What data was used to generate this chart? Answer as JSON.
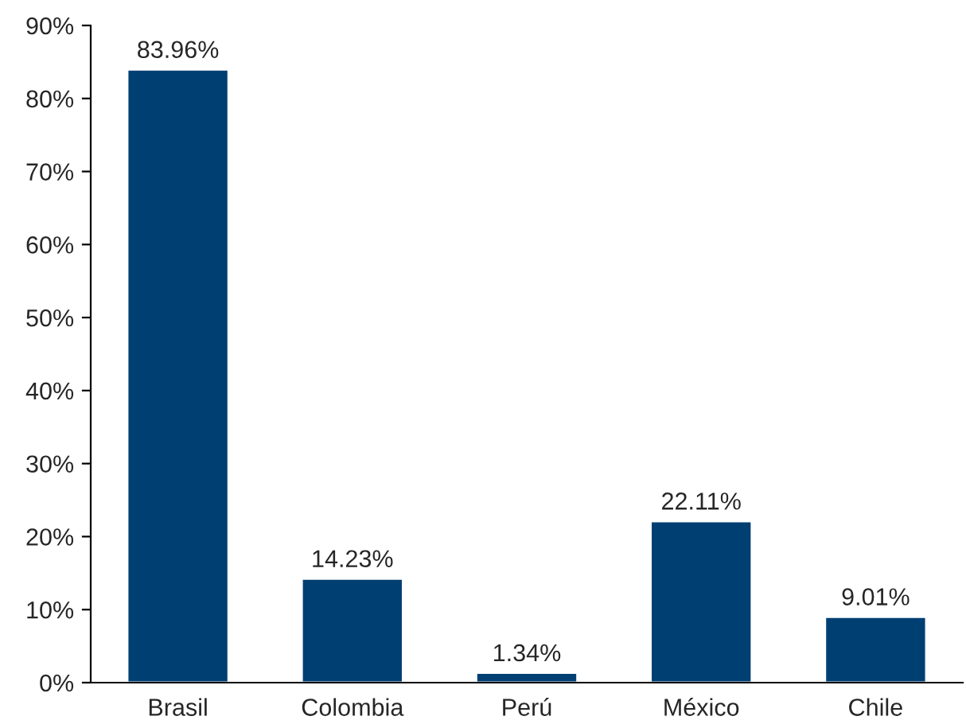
{
  "chart_data": {
    "type": "bar",
    "categories": [
      "Brasil",
      "Colombia",
      "Perú",
      "México",
      "Chile"
    ],
    "values": [
      83.96,
      14.23,
      1.34,
      22.11,
      9.01
    ],
    "value_labels": [
      "83.96%",
      "14.23%",
      "1.34%",
      "22.11%",
      "9.01%"
    ],
    "color": "#003f72",
    "ylim": [
      0,
      90
    ],
    "yticks": [
      {
        "value": 0,
        "label": "0%"
      },
      {
        "value": 10,
        "label": "10%"
      },
      {
        "value": 20,
        "label": "20%"
      },
      {
        "value": 30,
        "label": "30%"
      },
      {
        "value": 40,
        "label": "40%"
      },
      {
        "value": 50,
        "label": "50%"
      },
      {
        "value": 60,
        "label": "60%"
      },
      {
        "value": 70,
        "label": "70%"
      },
      {
        "value": 80,
        "label": "80%"
      },
      {
        "value": 90,
        "label": "90%"
      }
    ],
    "grid": false,
    "legend": false
  }
}
